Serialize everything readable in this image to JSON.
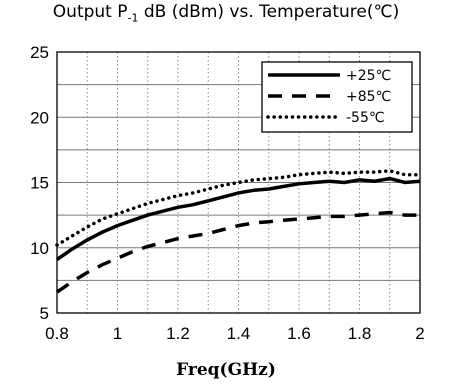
{
  "chart_data": {
    "type": "line",
    "title_main": "Output P",
    "title_sub": "-1",
    "title_rest": " dB (dBm) vs. Temperature(℃)",
    "xlabel": "Freq(GHz)",
    "ylabel": "",
    "xlim": [
      0.8,
      2.0
    ],
    "ylim": [
      5,
      25
    ],
    "xticks": [
      "0.8",
      "1",
      "1.2",
      "1.4",
      "1.6",
      "1.8",
      "2"
    ],
    "yticks": [
      "5",
      "10",
      "15",
      "20",
      "25"
    ],
    "grid": {
      "x_dotted": true,
      "y_solid": true
    },
    "legend_position": "top-right",
    "series": [
      {
        "name": "+25℃",
        "style": "solid",
        "x": [
          0.8,
          0.85,
          0.9,
          0.95,
          1.0,
          1.05,
          1.1,
          1.15,
          1.2,
          1.25,
          1.3,
          1.35,
          1.4,
          1.45,
          1.5,
          1.55,
          1.6,
          1.65,
          1.7,
          1.75,
          1.8,
          1.85,
          1.9,
          1.95,
          2.0
        ],
        "y": [
          9.1,
          9.9,
          10.6,
          11.2,
          11.7,
          12.1,
          12.5,
          12.8,
          13.1,
          13.3,
          13.6,
          13.9,
          14.2,
          14.4,
          14.5,
          14.7,
          14.9,
          15.0,
          15.1,
          15.0,
          15.2,
          15.1,
          15.3,
          15.0,
          15.1
        ]
      },
      {
        "name": "+85℃",
        "style": "dashed",
        "x": [
          0.8,
          0.85,
          0.9,
          0.95,
          1.0,
          1.05,
          1.1,
          1.15,
          1.2,
          1.25,
          1.3,
          1.35,
          1.4,
          1.45,
          1.5,
          1.55,
          1.6,
          1.65,
          1.7,
          1.75,
          1.8,
          1.85,
          1.9,
          1.95,
          2.0
        ],
        "y": [
          6.6,
          7.4,
          8.1,
          8.7,
          9.2,
          9.7,
          10.1,
          10.4,
          10.7,
          10.9,
          11.1,
          11.4,
          11.7,
          11.9,
          12.0,
          12.1,
          12.2,
          12.3,
          12.4,
          12.4,
          12.5,
          12.6,
          12.7,
          12.5,
          12.5
        ]
      },
      {
        "name": "-55℃",
        "style": "dotted",
        "x": [
          0.8,
          0.85,
          0.9,
          0.95,
          1.0,
          1.05,
          1.1,
          1.15,
          1.2,
          1.25,
          1.3,
          1.35,
          1.4,
          1.45,
          1.5,
          1.55,
          1.6,
          1.65,
          1.7,
          1.75,
          1.8,
          1.85,
          1.9,
          1.95,
          2.0
        ],
        "y": [
          10.2,
          10.9,
          11.6,
          12.2,
          12.6,
          13.0,
          13.4,
          13.7,
          14.0,
          14.2,
          14.5,
          14.8,
          15.0,
          15.2,
          15.3,
          15.4,
          15.6,
          15.7,
          15.8,
          15.7,
          15.8,
          15.8,
          15.9,
          15.6,
          15.6
        ]
      }
    ]
  }
}
